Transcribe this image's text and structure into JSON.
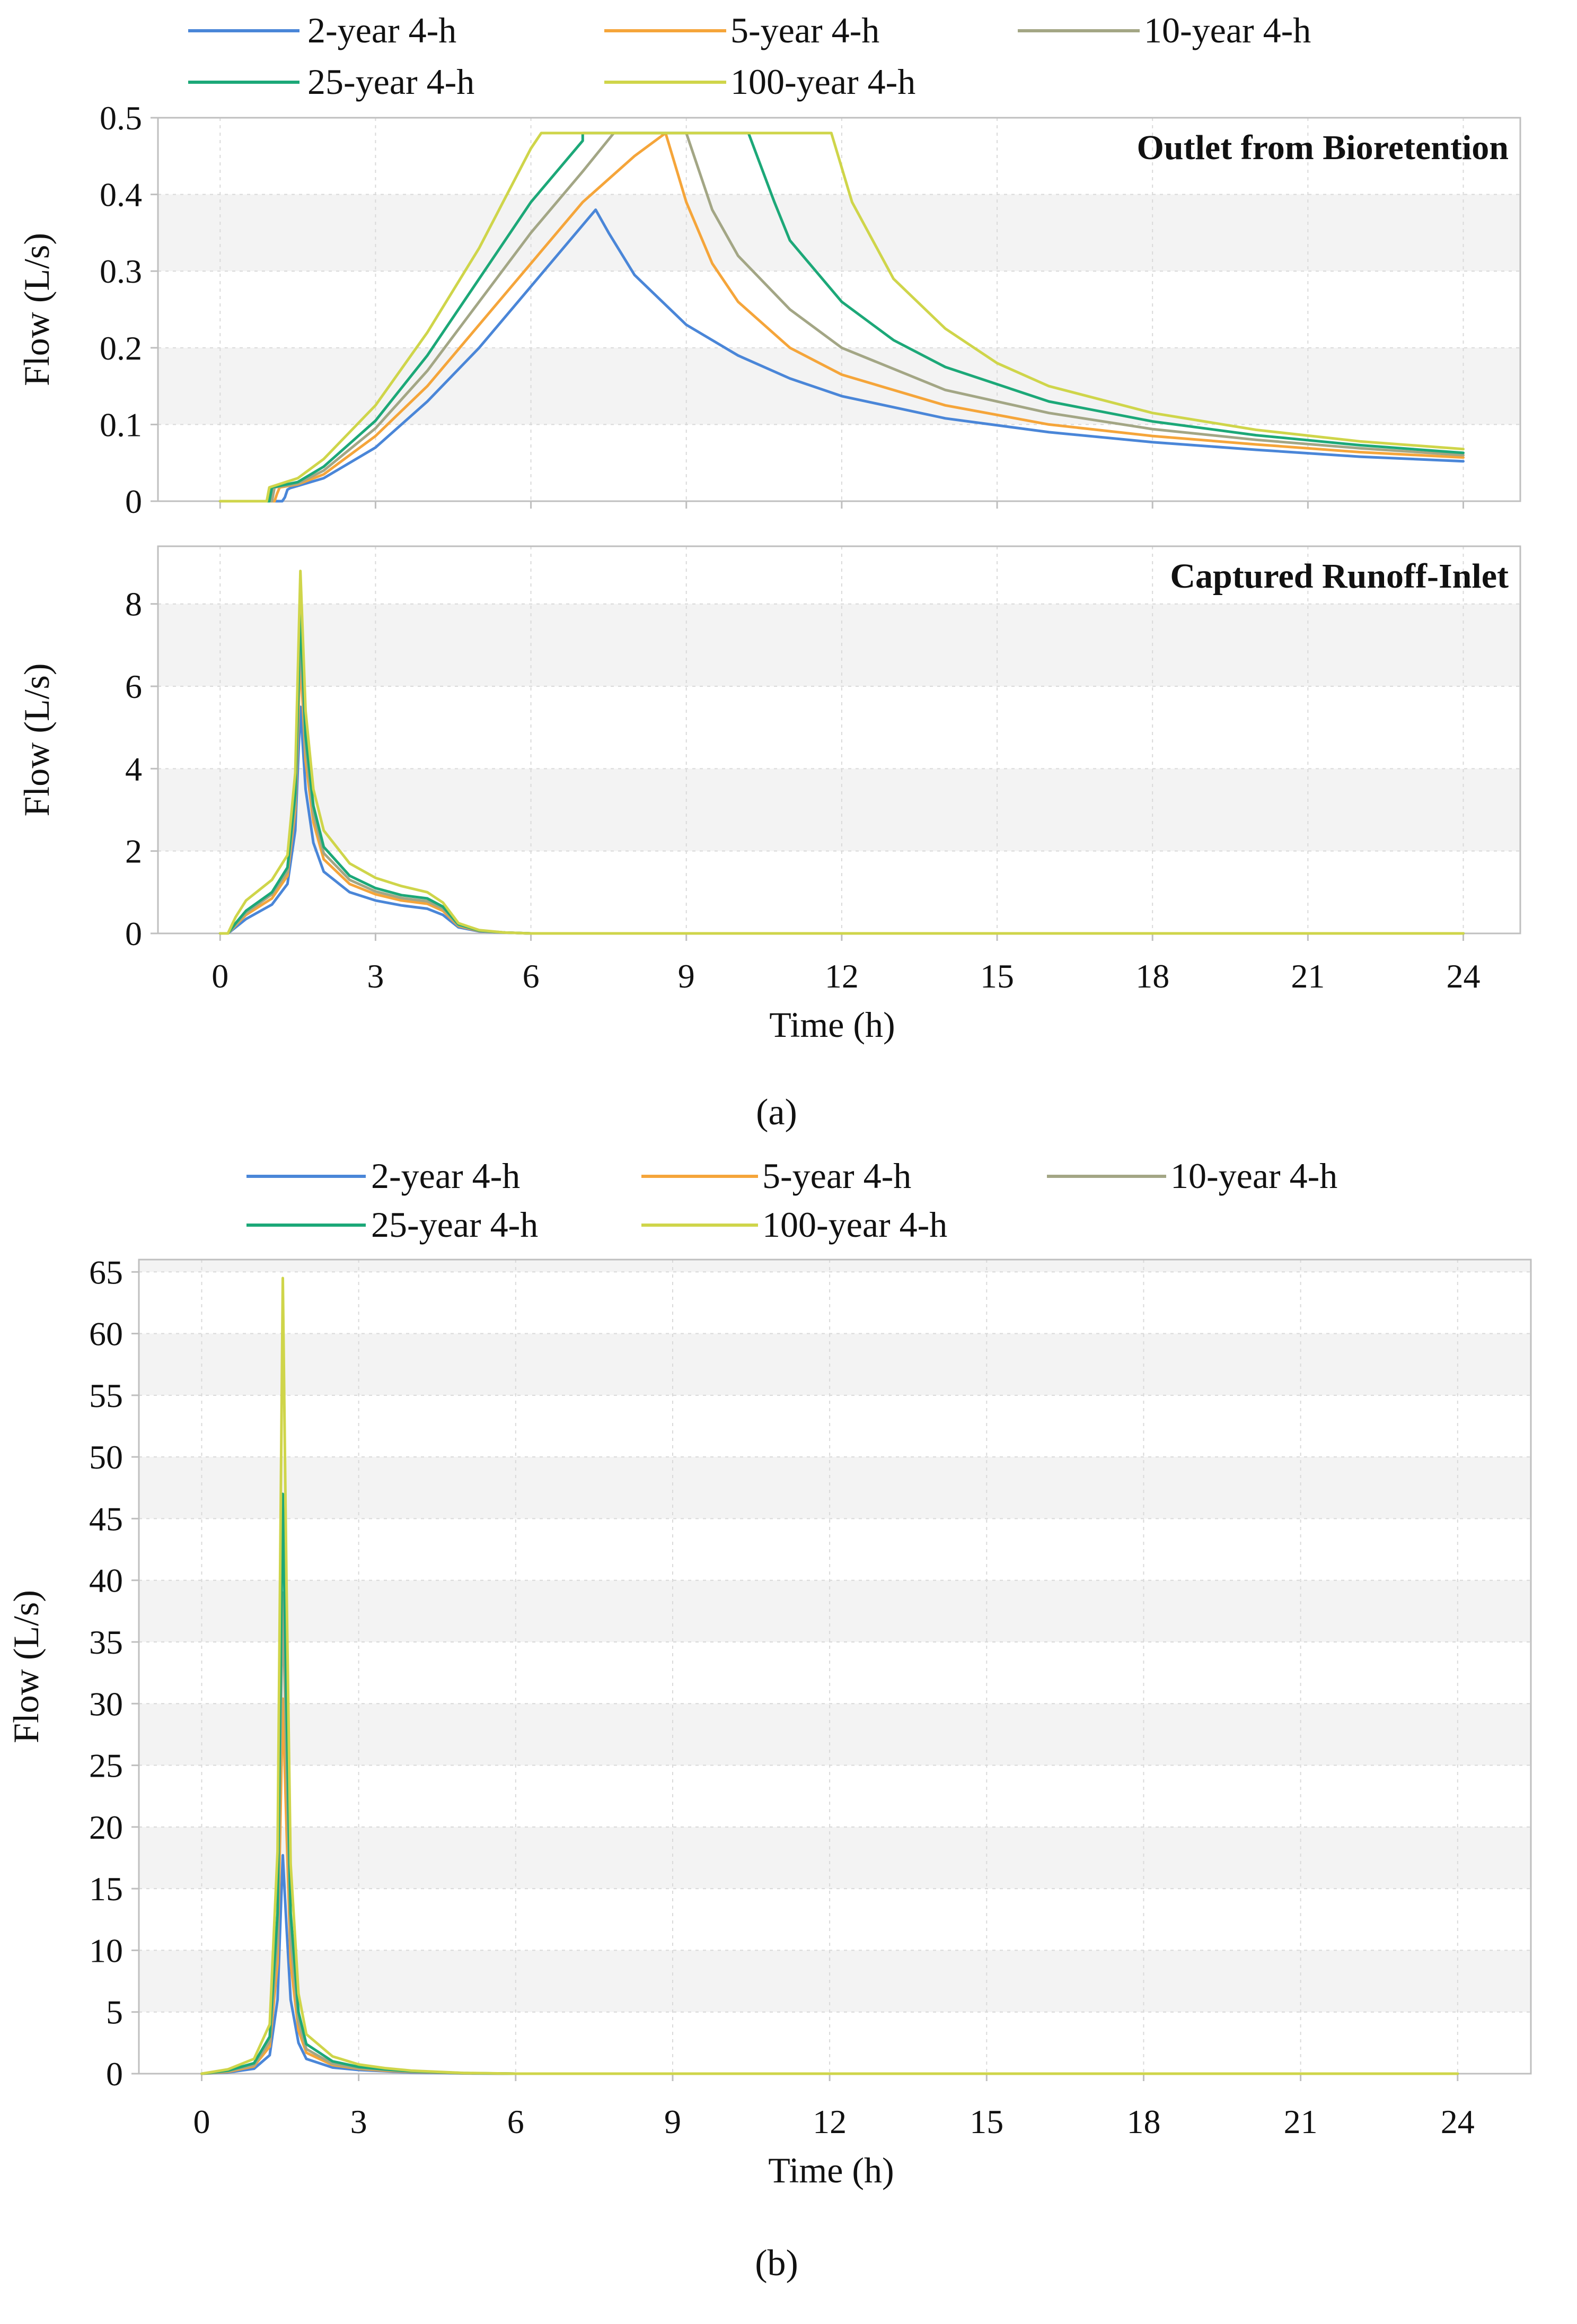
{
  "colors": {
    "2-year 4-h": "#4a86d8",
    "5-year 4-h": "#f5a53a",
    "10-year 4-h": "#a3a685",
    "25-year 4-h": "#1ca878",
    "100-year 4-h": "#cfd54a"
  },
  "legend_a": [
    "2-year 4-h",
    "5-year 4-h",
    "10-year 4-h",
    "25-year 4-h",
    "100-year 4-h"
  ],
  "legend_b": [
    "2-year 4-h",
    "5-year 4-h",
    "10-year 4-h",
    "25-year 4-h",
    "100-year 4-h"
  ],
  "captions": {
    "a": "(a)",
    "b": "(b)"
  },
  "chart_data": [
    {
      "type": "line",
      "title": "Outlet from Bioretention",
      "xlabel": "Time (h)",
      "ylabel": "Flow (L/s)",
      "xlim": [
        -1.2,
        25.1
      ],
      "ylim": [
        0,
        0.5
      ],
      "xticks": [
        0,
        3,
        6,
        9,
        12,
        15,
        18,
        21,
        24
      ],
      "yticks": [
        0,
        0.1,
        0.2,
        0.3,
        0.4,
        0.5
      ],
      "ytick_labels": [
        "0",
        "0.1",
        "0.2",
        "0.3",
        "0.4",
        "0.5"
      ],
      "series": [
        {
          "name": "2-year 4-h",
          "x": [
            0,
            1.2,
            1.25,
            1.3,
            1.35,
            1.5,
            2,
            3,
            4,
            5,
            6,
            7,
            7.25,
            7.5,
            8,
            9,
            10,
            11,
            12,
            14,
            16,
            18,
            20,
            22,
            24
          ],
          "y": [
            0,
            0,
            0.005,
            0.015,
            0.017,
            0.02,
            0.03,
            0.07,
            0.13,
            0.2,
            0.28,
            0.36,
            0.38,
            0.35,
            0.295,
            0.23,
            0.19,
            0.16,
            0.137,
            0.108,
            0.09,
            0.077,
            0.067,
            0.058,
            0.052
          ]
        },
        {
          "name": "5-year 4-h",
          "x": [
            0,
            1.05,
            1.1,
            1.15,
            1.5,
            2,
            3,
            4,
            5,
            6,
            7,
            8,
            8.6,
            9,
            9.5,
            10,
            11,
            12,
            14,
            16,
            18,
            20,
            22,
            24
          ],
          "y": [
            0,
            0,
            0.01,
            0.018,
            0.022,
            0.035,
            0.085,
            0.15,
            0.23,
            0.31,
            0.39,
            0.45,
            0.48,
            0.39,
            0.31,
            0.26,
            0.2,
            0.165,
            0.125,
            0.1,
            0.085,
            0.074,
            0.064,
            0.057
          ]
        },
        {
          "name": "10-year 4-h",
          "x": [
            0,
            1.0,
            1.05,
            1.5,
            2,
            3,
            4,
            5,
            6,
            7,
            7.6,
            9.0,
            9.5,
            10,
            11,
            12,
            14,
            16,
            18,
            20,
            22,
            24
          ],
          "y": [
            0,
            0,
            0.018,
            0.023,
            0.04,
            0.095,
            0.17,
            0.26,
            0.35,
            0.43,
            0.48,
            0.48,
            0.38,
            0.32,
            0.25,
            0.2,
            0.145,
            0.115,
            0.094,
            0.08,
            0.069,
            0.06
          ]
        },
        {
          "name": "25-year 4-h",
          "x": [
            0,
            0.95,
            1.0,
            1.5,
            2,
            3,
            4,
            5,
            6,
            7,
            7.0,
            10.2,
            10.7,
            11,
            12,
            13,
            14,
            16,
            18,
            20,
            22,
            24
          ],
          "y": [
            0,
            0,
            0.018,
            0.025,
            0.045,
            0.105,
            0.19,
            0.29,
            0.39,
            0.47,
            0.48,
            0.48,
            0.39,
            0.34,
            0.26,
            0.21,
            0.175,
            0.13,
            0.104,
            0.086,
            0.073,
            0.063
          ]
        },
        {
          "name": "100-year 4-h",
          "x": [
            0,
            0.9,
            0.95,
            1.5,
            2,
            3,
            4,
            5,
            6,
            6.2,
            11.8,
            12.2,
            13,
            14,
            15,
            16,
            18,
            20,
            22,
            24
          ],
          "y": [
            0,
            0,
            0.018,
            0.03,
            0.055,
            0.125,
            0.22,
            0.33,
            0.46,
            0.48,
            0.48,
            0.39,
            0.29,
            0.225,
            0.18,
            0.15,
            0.115,
            0.093,
            0.078,
            0.068
          ]
        }
      ]
    },
    {
      "type": "line",
      "title": "Captured Runoff-Inlet",
      "xlabel": "Time (h)",
      "ylabel": "Flow (L/s)",
      "xlim": [
        -1.2,
        25.1
      ],
      "ylim": [
        0,
        9.4
      ],
      "xticks": [
        0,
        3,
        6,
        9,
        12,
        15,
        18,
        21,
        24
      ],
      "yticks": [
        0,
        2,
        4,
        6,
        8
      ],
      "ytick_labels": [
        "0",
        "2",
        "4",
        "6",
        "8"
      ],
      "series": [
        {
          "name": "2-year 4-h",
          "x": [
            0,
            0.15,
            0.3,
            0.5,
            1.0,
            1.3,
            1.45,
            1.55,
            1.65,
            1.8,
            2.0,
            2.5,
            3.0,
            3.5,
            4.0,
            4.3,
            4.6,
            5.0,
            5.5,
            6,
            24
          ],
          "y": [
            0,
            0,
            0.15,
            0.35,
            0.7,
            1.2,
            2.5,
            5.5,
            3.5,
            2.2,
            1.5,
            1.0,
            0.8,
            0.68,
            0.6,
            0.45,
            0.15,
            0.05,
            0.02,
            0,
            0
          ]
        },
        {
          "name": "5-year 4-h",
          "x": [
            0,
            0.15,
            0.3,
            0.5,
            1.0,
            1.3,
            1.45,
            1.55,
            1.65,
            1.8,
            2.0,
            2.5,
            3.0,
            3.5,
            4.0,
            4.3,
            4.6,
            5.0,
            5.5,
            6,
            24
          ],
          "y": [
            0,
            0,
            0.2,
            0.45,
            0.85,
            1.4,
            3.0,
            6.7,
            4.2,
            2.7,
            1.8,
            1.2,
            0.95,
            0.8,
            0.72,
            0.55,
            0.18,
            0.06,
            0.02,
            0,
            0
          ]
        },
        {
          "name": "10-year 4-h",
          "x": [
            0,
            0.15,
            0.3,
            0.5,
            1.0,
            1.3,
            1.45,
            1.55,
            1.65,
            1.8,
            2.0,
            2.5,
            3.0,
            3.5,
            4.0,
            4.3,
            4.6,
            5.0,
            5.5,
            6,
            24
          ],
          "y": [
            0,
            0,
            0.22,
            0.5,
            0.95,
            1.5,
            3.2,
            7.2,
            4.5,
            2.9,
            1.95,
            1.3,
            1.02,
            0.86,
            0.78,
            0.6,
            0.2,
            0.07,
            0.02,
            0,
            0
          ]
        },
        {
          "name": "25-year 4-h",
          "x": [
            0,
            0.15,
            0.3,
            0.5,
            1.0,
            1.3,
            1.45,
            1.55,
            1.65,
            1.8,
            2.0,
            2.5,
            3.0,
            3.5,
            4.0,
            4.3,
            4.6,
            5.0,
            5.5,
            6,
            24
          ],
          "y": [
            0,
            0,
            0.25,
            0.55,
            1.0,
            1.6,
            3.4,
            7.8,
            4.8,
            3.1,
            2.1,
            1.4,
            1.1,
            0.93,
            0.85,
            0.65,
            0.22,
            0.07,
            0.02,
            0,
            0
          ]
        },
        {
          "name": "100-year 4-h",
          "x": [
            0,
            0.15,
            0.3,
            0.5,
            1.0,
            1.3,
            1.45,
            1.55,
            1.65,
            1.8,
            2.0,
            2.5,
            3.0,
            3.5,
            4.0,
            4.3,
            4.6,
            5.0,
            5.5,
            6,
            24
          ],
          "y": [
            0,
            0,
            0.4,
            0.8,
            1.3,
            1.9,
            3.9,
            8.8,
            5.4,
            3.5,
            2.5,
            1.7,
            1.35,
            1.15,
            1.0,
            0.75,
            0.25,
            0.08,
            0.02,
            0,
            0
          ]
        }
      ]
    },
    {
      "type": "line",
      "title": "",
      "xlabel": "Time (h)",
      "ylabel": "Flow (L/s)",
      "xlim": [
        -1.2,
        25.4
      ],
      "ylim": [
        0,
        66
      ],
      "xticks": [
        0,
        3,
        6,
        9,
        12,
        15,
        18,
        21,
        24
      ],
      "yticks": [
        0,
        5,
        10,
        15,
        20,
        25,
        30,
        35,
        40,
        45,
        50,
        55,
        60,
        65
      ],
      "ytick_labels": [
        "0",
        "5",
        "10",
        "15",
        "20",
        "25",
        "30",
        "35",
        "40",
        "45",
        "50",
        "55",
        "60",
        "65"
      ],
      "series": [
        {
          "name": "2-year 4-h",
          "x": [
            0,
            0.5,
            1.0,
            1.3,
            1.45,
            1.55,
            1.62,
            1.7,
            1.85,
            2.0,
            2.5,
            3.0,
            3.5,
            4.0,
            5.0,
            6.0,
            24
          ],
          "y": [
            0,
            0.1,
            0.4,
            1.5,
            6.0,
            17.7,
            12.0,
            6.0,
            2.5,
            1.2,
            0.5,
            0.3,
            0.2,
            0.1,
            0.02,
            0,
            0
          ]
        },
        {
          "name": "5-year 4-h",
          "x": [
            0,
            0.5,
            1.0,
            1.3,
            1.45,
            1.55,
            1.62,
            1.7,
            1.85,
            2.0,
            2.5,
            3.0,
            3.5,
            4.0,
            5.0,
            6.0,
            24
          ],
          "y": [
            0,
            0.15,
            0.6,
            2.2,
            9.0,
            30.4,
            20.0,
            9.0,
            3.5,
            1.7,
            0.7,
            0.4,
            0.25,
            0.15,
            0.03,
            0,
            0
          ]
        },
        {
          "name": "10-year 4-h",
          "x": [
            0,
            0.5,
            1.0,
            1.3,
            1.45,
            1.55,
            1.62,
            1.7,
            1.85,
            2.0,
            2.5,
            3.0,
            3.5,
            4.0,
            5.0,
            6.0,
            24
          ],
          "y": [
            0,
            0.2,
            0.7,
            2.6,
            11.0,
            39.0,
            25.0,
            11.0,
            4.2,
            2.0,
            0.8,
            0.45,
            0.3,
            0.18,
            0.04,
            0,
            0
          ]
        },
        {
          "name": "25-year 4-h",
          "x": [
            0,
            0.5,
            1.0,
            1.3,
            1.45,
            1.55,
            1.62,
            1.7,
            1.85,
            2.0,
            2.5,
            3.0,
            3.5,
            4.0,
            5.0,
            6.0,
            24
          ],
          "y": [
            0,
            0.25,
            0.85,
            3.0,
            13.0,
            47.0,
            30.0,
            13.0,
            5.0,
            2.4,
            1.0,
            0.55,
            0.35,
            0.2,
            0.05,
            0,
            0
          ]
        },
        {
          "name": "100-year 4-h",
          "x": [
            0,
            0.5,
            1.0,
            1.3,
            1.45,
            1.55,
            1.62,
            1.7,
            1.85,
            2.0,
            2.5,
            3.0,
            3.5,
            4.0,
            5.0,
            6.0,
            24
          ],
          "y": [
            0,
            0.35,
            1.2,
            4.0,
            18.0,
            64.5,
            40.0,
            17.0,
            6.5,
            3.2,
            1.4,
            0.75,
            0.45,
            0.25,
            0.06,
            0,
            0
          ]
        }
      ]
    }
  ]
}
